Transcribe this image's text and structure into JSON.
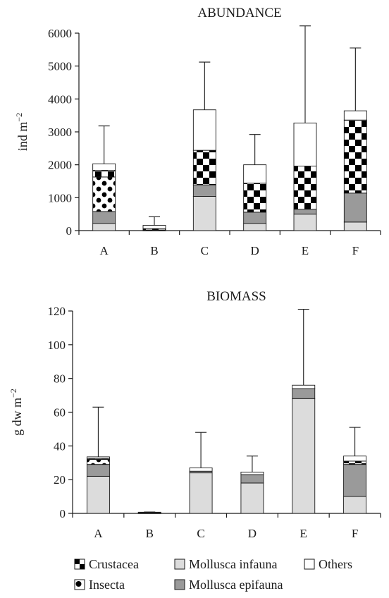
{
  "legend": [
    {
      "key": "crustacea",
      "label": "Crustacea"
    },
    {
      "key": "insecta",
      "label": "Insecta"
    },
    {
      "key": "infauna",
      "label": "Mollusca infauna"
    },
    {
      "key": "epifauna",
      "label": "Mollusca epifauna"
    },
    {
      "key": "others",
      "label": "Others"
    }
  ],
  "colors": {
    "infauna": "#dcdcdc",
    "epifauna": "#9a9a9a",
    "others": "#ffffff",
    "pattern_dark": "#000000",
    "pattern_light": "#ffffff",
    "outline": "#1a1a1a"
  },
  "chart_data": [
    {
      "type": "bar",
      "stacked": true,
      "title": "ABUNDANCE",
      "ylabel": "ind m⁻²",
      "ylabel_base": "ind m",
      "ylabel_exp": "−2",
      "ylim": [
        0,
        6000
      ],
      "yticks": [
        0,
        1000,
        2000,
        3000,
        4000,
        5000,
        6000
      ],
      "categories": [
        "A",
        "B",
        "C",
        "D",
        "E",
        "F"
      ],
      "series": [
        {
          "key": "infauna",
          "name": "Mollusca infauna",
          "values": [
            220,
            10,
            1040,
            220,
            500,
            260
          ]
        },
        {
          "key": "epifauna",
          "name": "Mollusca epifauna",
          "values": [
            360,
            10,
            350,
            340,
            150,
            880
          ]
        },
        {
          "key": "insecta",
          "name": "Insecta",
          "values": [
            1050,
            0,
            0,
            0,
            0,
            0
          ]
        },
        {
          "key": "crustacea",
          "name": "Crustacea",
          "values": [
            200,
            40,
            1050,
            880,
            1310,
            2220
          ]
        },
        {
          "key": "others",
          "name": "Others",
          "values": [
            200,
            100,
            1230,
            560,
            1310,
            280
          ]
        }
      ],
      "errors": [
        3180,
        420,
        5120,
        2920,
        6220,
        5550
      ]
    },
    {
      "type": "bar",
      "stacked": true,
      "title": "BIOMASS",
      "ylabel": "g dw m⁻²",
      "ylabel_base": "g dw m",
      "ylabel_exp": "−2",
      "ylim": [
        0,
        120
      ],
      "yticks": [
        0,
        20,
        40,
        60,
        80,
        100,
        120
      ],
      "categories": [
        "A",
        "B",
        "C",
        "D",
        "E",
        "F"
      ],
      "series": [
        {
          "key": "infauna",
          "name": "Mollusca infauna",
          "values": [
            22,
            0.2,
            24,
            18,
            68,
            10
          ]
        },
        {
          "key": "epifauna",
          "name": "Mollusca epifauna",
          "values": [
            7,
            0.2,
            1,
            5,
            6,
            19
          ]
        },
        {
          "key": "insecta",
          "name": "Insecta",
          "values": [
            3,
            0,
            0,
            0,
            0,
            0
          ]
        },
        {
          "key": "crustacea",
          "name": "Crustacea",
          "values": [
            0.5,
            0,
            0,
            0,
            0,
            2
          ]
        },
        {
          "key": "others",
          "name": "Others",
          "values": [
            1,
            0.3,
            2,
            1.5,
            2,
            3
          ]
        }
      ],
      "errors": [
        63,
        0.8,
        48,
        34,
        121,
        51
      ]
    }
  ]
}
